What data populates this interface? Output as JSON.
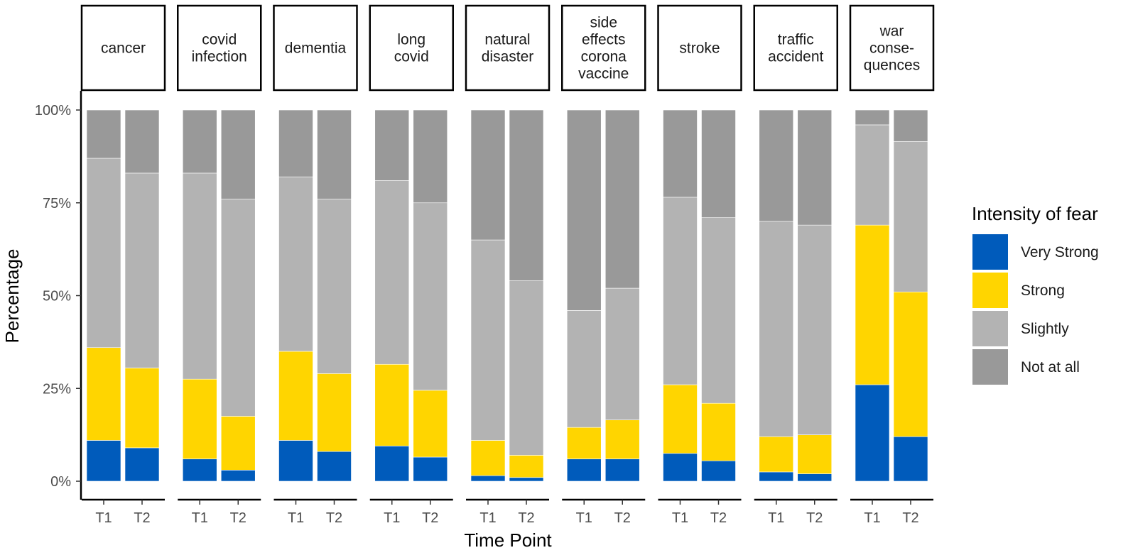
{
  "chart_data": {
    "type": "bar",
    "stacked": true,
    "percent": true,
    "xlabel": "Time Point",
    "ylabel": "Percentage",
    "ylim": [
      0,
      100
    ],
    "y_ticks": [
      "0%",
      "25%",
      "50%",
      "75%",
      "100%"
    ],
    "y_tick_values": [
      0,
      25,
      50,
      75,
      100
    ],
    "x_categories": [
      "T1",
      "T2"
    ],
    "legend": {
      "title": "Intensity of fear",
      "position": "right",
      "items": [
        {
          "label": "Very Strong",
          "color": "#005BBB"
        },
        {
          "label": "Strong",
          "color": "#FFD500"
        },
        {
          "label": "Slightly",
          "color": "#B3B3B3"
        },
        {
          "label": "Not at all",
          "color": "#999999"
        }
      ]
    },
    "facets": [
      {
        "name": "cancer",
        "label_lines": [
          "cancer"
        ],
        "bars": [
          {
            "x": "T1",
            "very_strong": 11,
            "strong": 25,
            "slightly": 51,
            "not_at_all": 13
          },
          {
            "x": "T2",
            "very_strong": 9,
            "strong": 21.5,
            "slightly": 52.5,
            "not_at_all": 17
          }
        ]
      },
      {
        "name": "covid-infection",
        "label_lines": [
          "covid",
          "infection"
        ],
        "bars": [
          {
            "x": "T1",
            "very_strong": 6,
            "strong": 21.5,
            "slightly": 55.5,
            "not_at_all": 17
          },
          {
            "x": "T2",
            "very_strong": 3,
            "strong": 14.5,
            "slightly": 58.5,
            "not_at_all": 24
          }
        ]
      },
      {
        "name": "dementia",
        "label_lines": [
          "dementia"
        ],
        "bars": [
          {
            "x": "T1",
            "very_strong": 11,
            "strong": 24,
            "slightly": 47,
            "not_at_all": 18
          },
          {
            "x": "T2",
            "very_strong": 8,
            "strong": 21,
            "slightly": 47,
            "not_at_all": 24
          }
        ]
      },
      {
        "name": "long-covid",
        "label_lines": [
          "long",
          "covid"
        ],
        "bars": [
          {
            "x": "T1",
            "very_strong": 9.5,
            "strong": 22,
            "slightly": 49.5,
            "not_at_all": 19
          },
          {
            "x": "T2",
            "very_strong": 6.5,
            "strong": 18,
            "slightly": 50.5,
            "not_at_all": 25
          }
        ]
      },
      {
        "name": "natural-disaster",
        "label_lines": [
          "natural",
          "disaster"
        ],
        "bars": [
          {
            "x": "T1",
            "very_strong": 1.5,
            "strong": 9.5,
            "slightly": 54,
            "not_at_all": 35
          },
          {
            "x": "T2",
            "very_strong": 1,
            "strong": 6,
            "slightly": 47,
            "not_at_all": 46
          }
        ]
      },
      {
        "name": "side-effects-corona-vaccine",
        "label_lines": [
          "side",
          "effects",
          "corona",
          "vaccine"
        ],
        "bars": [
          {
            "x": "T1",
            "very_strong": 6,
            "strong": 8.5,
            "slightly": 31.5,
            "not_at_all": 54
          },
          {
            "x": "T2",
            "very_strong": 6,
            "strong": 10.5,
            "slightly": 35.5,
            "not_at_all": 48
          }
        ]
      },
      {
        "name": "stroke",
        "label_lines": [
          "stroke"
        ],
        "bars": [
          {
            "x": "T1",
            "very_strong": 7.5,
            "strong": 18.5,
            "slightly": 50.5,
            "not_at_all": 23.5
          },
          {
            "x": "T2",
            "very_strong": 5.5,
            "strong": 15.5,
            "slightly": 50,
            "not_at_all": 29
          }
        ]
      },
      {
        "name": "traffic-accident",
        "label_lines": [
          "traffic",
          "accident"
        ],
        "bars": [
          {
            "x": "T1",
            "very_strong": 2.5,
            "strong": 9.5,
            "slightly": 58,
            "not_at_all": 30
          },
          {
            "x": "T2",
            "very_strong": 2,
            "strong": 10.5,
            "slightly": 56.5,
            "not_at_all": 31
          }
        ]
      },
      {
        "name": "war-consequences",
        "label_lines": [
          "war",
          "conse-",
          "quences"
        ],
        "bars": [
          {
            "x": "T1",
            "very_strong": 26,
            "strong": 43,
            "slightly": 27,
            "not_at_all": 4
          },
          {
            "x": "T2",
            "very_strong": 12,
            "strong": 39,
            "slightly": 40.5,
            "not_at_all": 8.5
          }
        ]
      }
    ]
  }
}
